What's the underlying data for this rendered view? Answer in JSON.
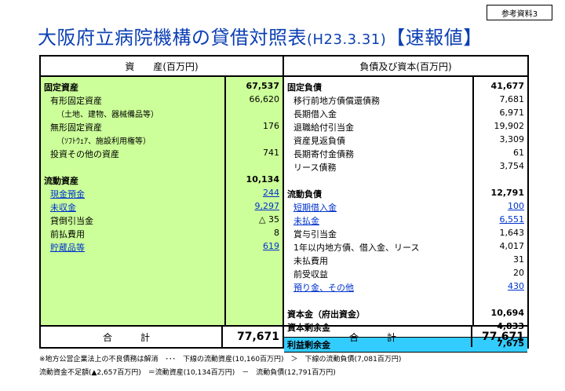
{
  "ref_label": "参考資料3",
  "title": {
    "main": "大阪府立病院機構の貸借対照表",
    "paren": "(H23.3.31)",
    "tag": "【速報値】"
  },
  "assets": {
    "header": "資　　産(百万円)",
    "rows": [
      {
        "name": "固定資産",
        "value": "67,537",
        "bold": true
      },
      {
        "name": "有形固定資産",
        "value": "66,620",
        "indent": 1
      },
      {
        "name": "（土地、建物、器械備品等）",
        "value": "",
        "indent": 2
      },
      {
        "name": "無形固定資産",
        "value": "176",
        "indent": 1
      },
      {
        "name": "（ｿﾌﾄｳｪｱ、施設利用権等）",
        "value": "",
        "indent": 2
      },
      {
        "name": "投資その他の資産",
        "value": "741",
        "indent": 1
      },
      {
        "name": "",
        "value": ""
      },
      {
        "name": "流動資産",
        "value": "10,134",
        "bold": true
      },
      {
        "name": "現金預金",
        "value": "244",
        "indent": 1,
        "link": true
      },
      {
        "name": "未収金",
        "value": "9,297",
        "indent": 1,
        "link": true
      },
      {
        "name": "貸倒引当金",
        "value": "△ 35",
        "indent": 1
      },
      {
        "name": "前払費用",
        "value": "8",
        "indent": 1
      },
      {
        "name": "貯蔵品等",
        "value": "619",
        "indent": 1,
        "link": true
      }
    ],
    "total_label": "合　計",
    "total_value": "77,671"
  },
  "liabilities": {
    "header": "負債及び資本(百万円)",
    "rows": [
      {
        "name": "固定負債",
        "value": "41,677",
        "bold": true
      },
      {
        "name": "移行前地方債償還債務",
        "value": "7,681",
        "indent": 1
      },
      {
        "name": "長期借入金",
        "value": "6,971",
        "indent": 1
      },
      {
        "name": "退職給付引当金",
        "value": "19,902",
        "indent": 1
      },
      {
        "name": "資産見返負債",
        "value": "3,309",
        "indent": 1
      },
      {
        "name": "長期寄付金債務",
        "value": "61",
        "indent": 1
      },
      {
        "name": "リース債務",
        "value": "3,754",
        "indent": 1
      },
      {
        "name": "",
        "value": ""
      },
      {
        "name": "流動負債",
        "value": "12,791",
        "bold": true
      },
      {
        "name": "短期借入金",
        "value": "100",
        "indent": 1,
        "link": true
      },
      {
        "name": "未払金",
        "value": "6,551",
        "indent": 1,
        "link": true
      },
      {
        "name": "賞与引当金",
        "value": "1,643",
        "indent": 1
      },
      {
        "name": "1年以内地方債、借入金、リース",
        "value": "4,017",
        "indent": 1
      },
      {
        "name": "未払費用",
        "value": "31",
        "indent": 1
      },
      {
        "name": "前受収益",
        "value": "20",
        "indent": 1
      },
      {
        "name": "預り金、その他",
        "value": "430",
        "indent": 1,
        "link": true
      },
      {
        "name": "",
        "value": ""
      },
      {
        "name": "資本金（府出資金）",
        "value": "10,694",
        "bold": true
      },
      {
        "name": "資本剰余金",
        "value": "4,833",
        "bold": true
      }
    ],
    "surplus": {
      "name": "利益剰余金",
      "value": "7,675"
    },
    "total_label": "合　計",
    "total_value": "77,671"
  },
  "notes": [
    "※地方公営企業法上の不良債務は解消　･･･　下線の流動資産(10,160百万円)　＞　下線の流動負債(7,081百万円)",
    "流動資金不足額(▲2,657百万円)　＝流動資産(10,134百万円)　－　流動負債(12,791百万円)"
  ]
}
